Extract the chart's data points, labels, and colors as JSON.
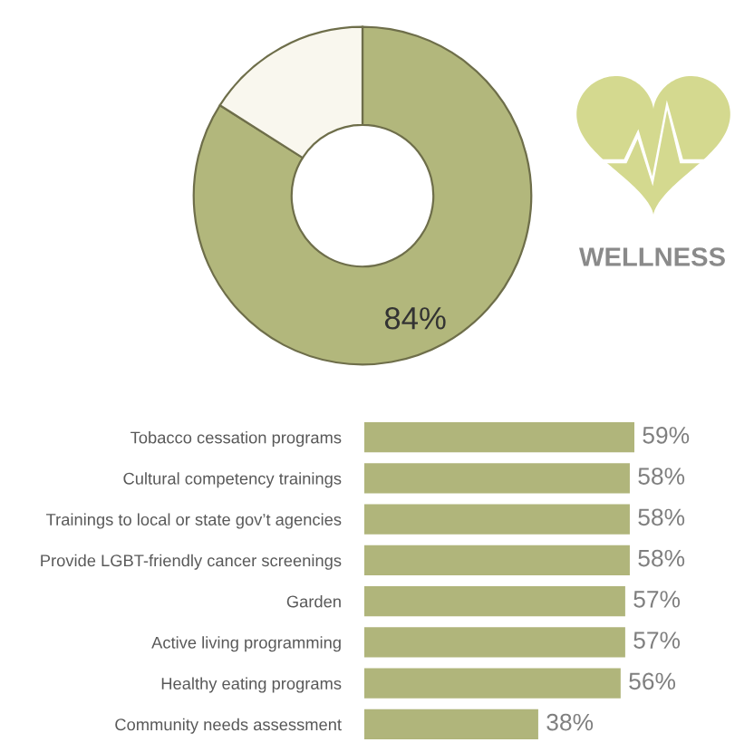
{
  "chart_data": [
    {
      "type": "donut",
      "title": "WELLNESS",
      "categories": [
        null,
        null
      ],
      "values": [
        84,
        16
      ],
      "colors": [
        "#b2b77c",
        "#f9f7ee"
      ],
      "value_labels": [
        "84%",
        null
      ]
    },
    {
      "type": "bar",
      "orientation": "horizontal",
      "categories": [
        "Tobacco cessation programs",
        "Cultural competency trainings",
        "Trainings to local or state gov’t agencies",
        "Provide LGBT-friendly cancer screenings",
        "Garden",
        "Active living programming",
        "Healthy eating programs",
        "Community needs assessment"
      ],
      "values": [
        59,
        58,
        58,
        58,
        57,
        57,
        56,
        38
      ],
      "color": "#b0b57b",
      "value_labels": [
        "59%",
        "58%",
        "58%",
        "58%",
        "57%",
        "57%",
        "56%",
        "38%"
      ]
    }
  ]
}
